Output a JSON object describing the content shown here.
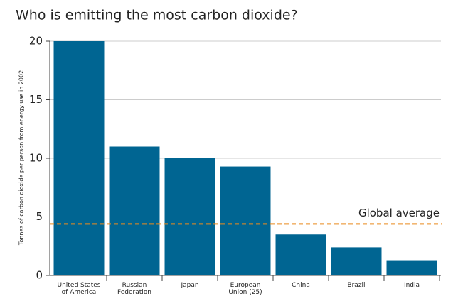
{
  "chart_data": {
    "type": "bar",
    "title": "Who is emitting the most carbon dioxide?",
    "y_label": "Tonnes of carbon dioxide per person from energy use in 2002",
    "categories": [
      "United States\nof America",
      "Russian\nFederation",
      "Japan",
      "European\nUnion (25)",
      "China",
      "Brazil",
      "India"
    ],
    "values": [
      20,
      11,
      10,
      9.3,
      3.5,
      2.4,
      1.3
    ],
    "color": "#006592",
    "ylim": [
      0,
      20
    ],
    "yticks": [
      0,
      5,
      10,
      15,
      20
    ],
    "grid": true,
    "reference_line": {
      "label": "Global average",
      "value": 4.4,
      "color": "#e98a1e"
    }
  }
}
